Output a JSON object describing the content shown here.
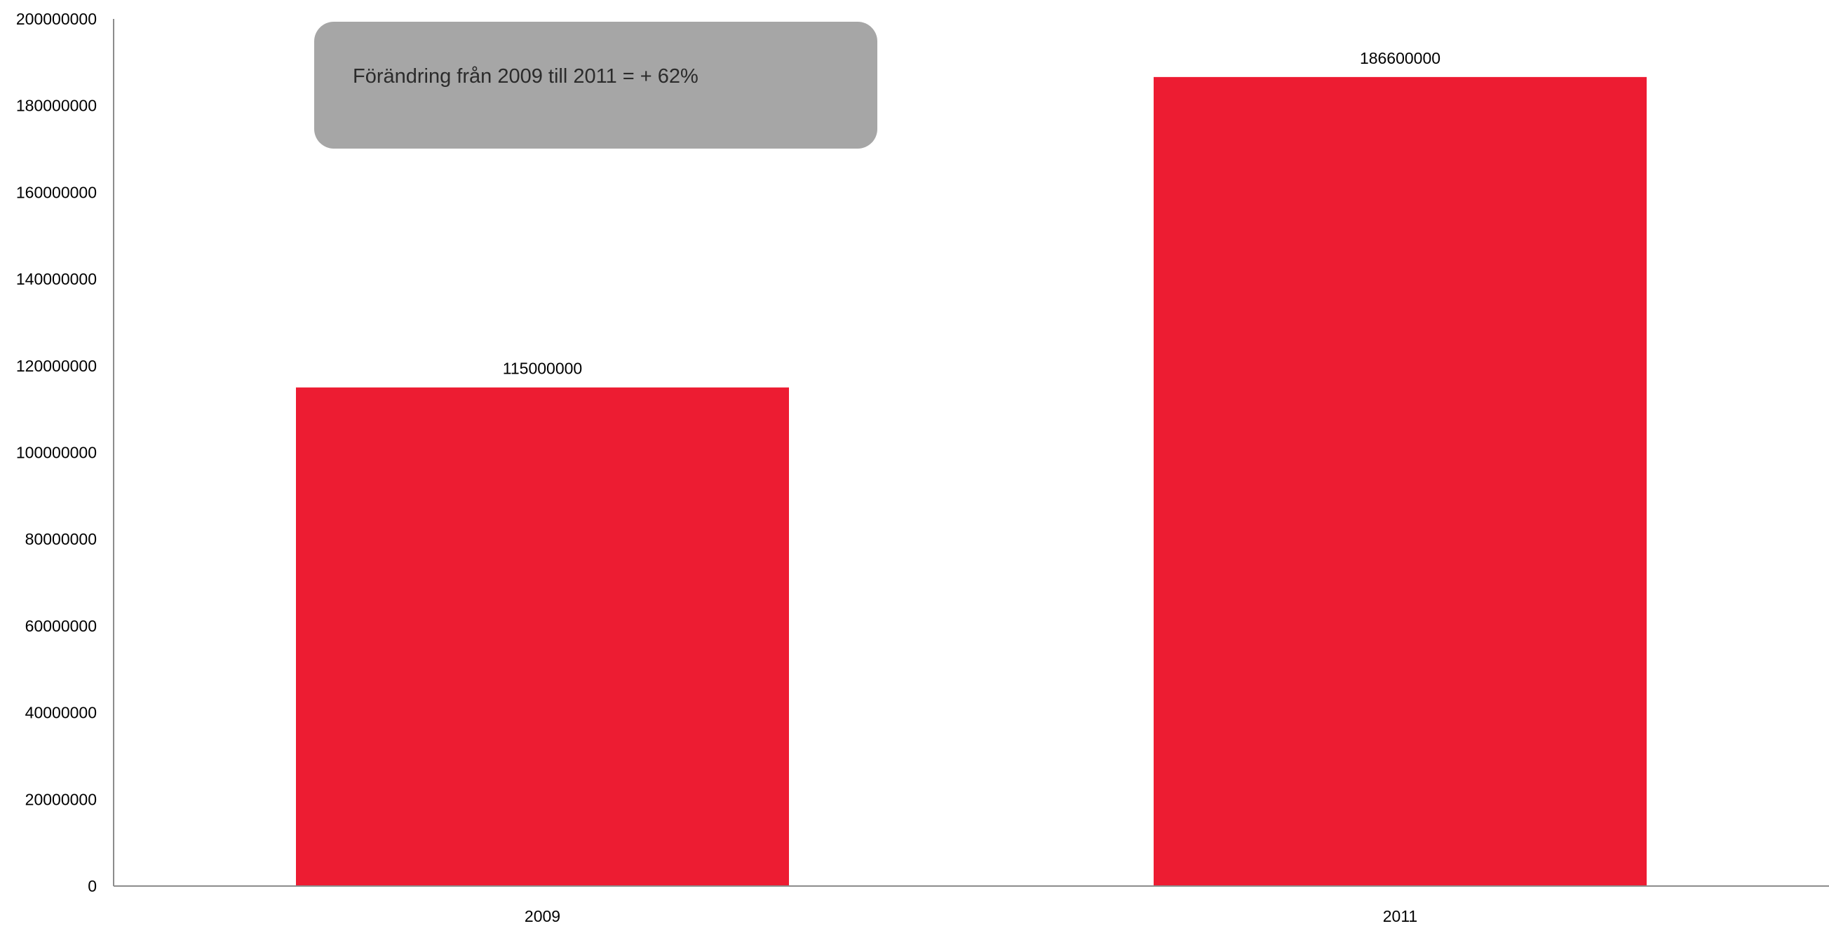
{
  "chart_data": {
    "type": "bar",
    "title": "",
    "xlabel": "",
    "ylabel": "",
    "categories": [
      "2009",
      "2011"
    ],
    "values": [
      115000000,
      186600000
    ],
    "data_labels": [
      "115000000",
      "186600000"
    ],
    "ylim": [
      0,
      200000000
    ],
    "y_ticks": [
      0,
      20000000,
      40000000,
      60000000,
      80000000,
      100000000,
      120000000,
      140000000,
      160000000,
      180000000,
      200000000
    ],
    "y_tick_labels": [
      "0",
      "20000000",
      "40000000",
      "60000000",
      "80000000",
      "100000000",
      "120000000",
      "140000000",
      "160000000",
      "180000000",
      "200000000"
    ],
    "grid": false,
    "legend": "none",
    "bar_color": "#ed1c32",
    "axis_color": "#8c8c8c",
    "annotation": {
      "text": "Förändring från 2009 till 2011 = + 62%",
      "background": "#a6a6a6"
    }
  }
}
